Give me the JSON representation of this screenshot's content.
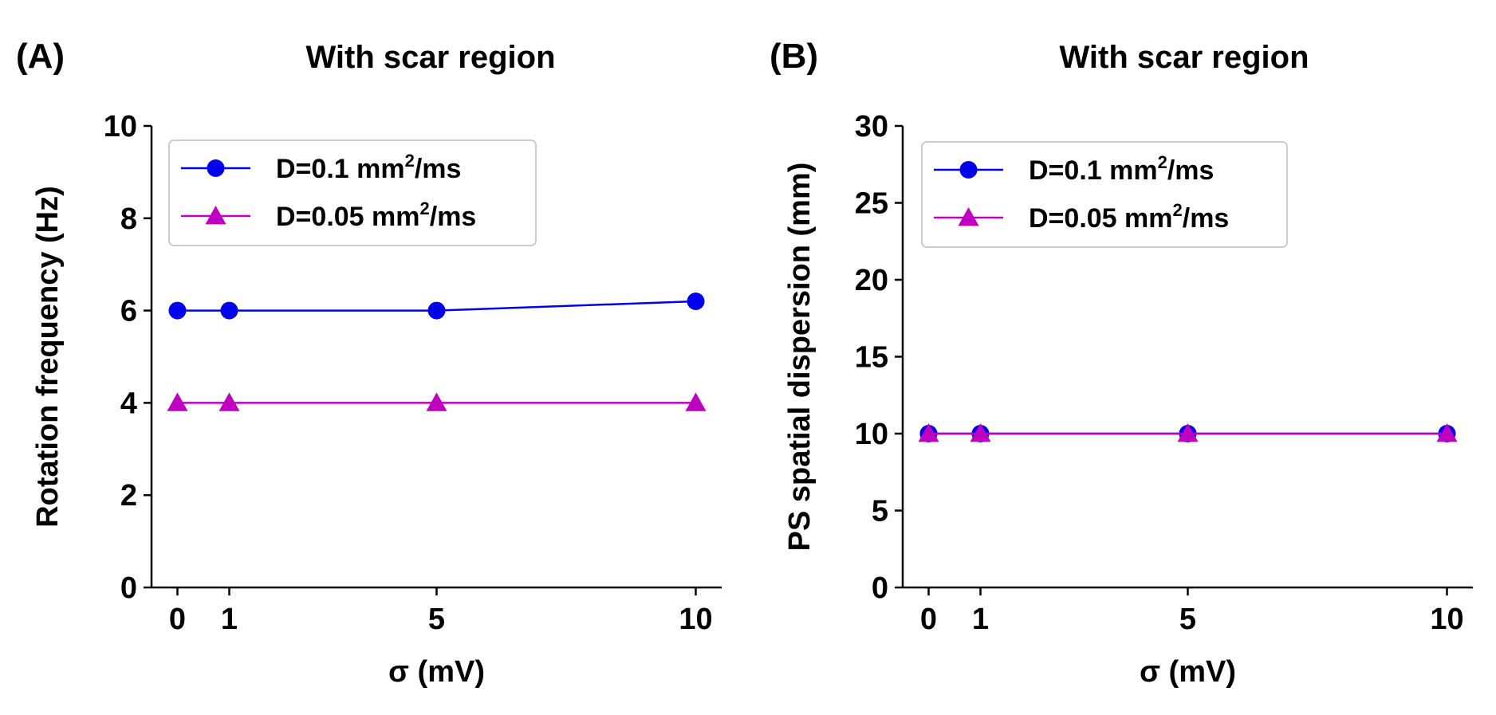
{
  "chart_data": [
    {
      "panel_label": "(A)",
      "type": "line",
      "title": "With scar region",
      "xlabel": "σ (mV)",
      "ylabel": "Rotation frequency (Hz)",
      "x": [
        0,
        1,
        5,
        10
      ],
      "xticks": [
        "0",
        "1",
        "5",
        "10"
      ],
      "xlim": [
        -0.5,
        10.5
      ],
      "ylim": [
        0,
        10
      ],
      "yticks": [
        "0",
        "2",
        "4",
        "6",
        "8",
        "10"
      ],
      "grid": false,
      "legend_position": "top-left",
      "series": [
        {
          "name": "D=0.1 mm",
          "unit_sup": "2",
          "unit_tail": "/ms",
          "marker": "circle",
          "color": "#0000ee",
          "values": [
            6,
            6,
            6,
            6.2
          ]
        },
        {
          "name": "D=0.05 mm",
          "unit_sup": "2",
          "unit_tail": "/ms",
          "marker": "triangle",
          "color": "#c000c0",
          "values": [
            4,
            4,
            4,
            4
          ]
        }
      ]
    },
    {
      "panel_label": "(B)",
      "type": "line",
      "title": "With scar region",
      "xlabel": "σ (mV)",
      "ylabel": "PS spatial dispersion (mm)",
      "x": [
        0,
        1,
        5,
        10
      ],
      "xticks": [
        "0",
        "1",
        "5",
        "10"
      ],
      "xlim": [
        -0.5,
        10.5
      ],
      "ylim": [
        0,
        30
      ],
      "yticks": [
        "0",
        "5",
        "10",
        "15",
        "20",
        "25",
        "30"
      ],
      "grid": false,
      "legend_position": "top-left",
      "series": [
        {
          "name": "D=0.1 mm",
          "unit_sup": "2",
          "unit_tail": "/ms",
          "marker": "circle",
          "color": "#0000ee",
          "values": [
            10,
            10,
            10,
            10
          ]
        },
        {
          "name": "D=0.05 mm",
          "unit_sup": "2",
          "unit_tail": "/ms",
          "marker": "triangle",
          "color": "#c000c0",
          "values": [
            10,
            10,
            10,
            10
          ]
        }
      ]
    }
  ]
}
